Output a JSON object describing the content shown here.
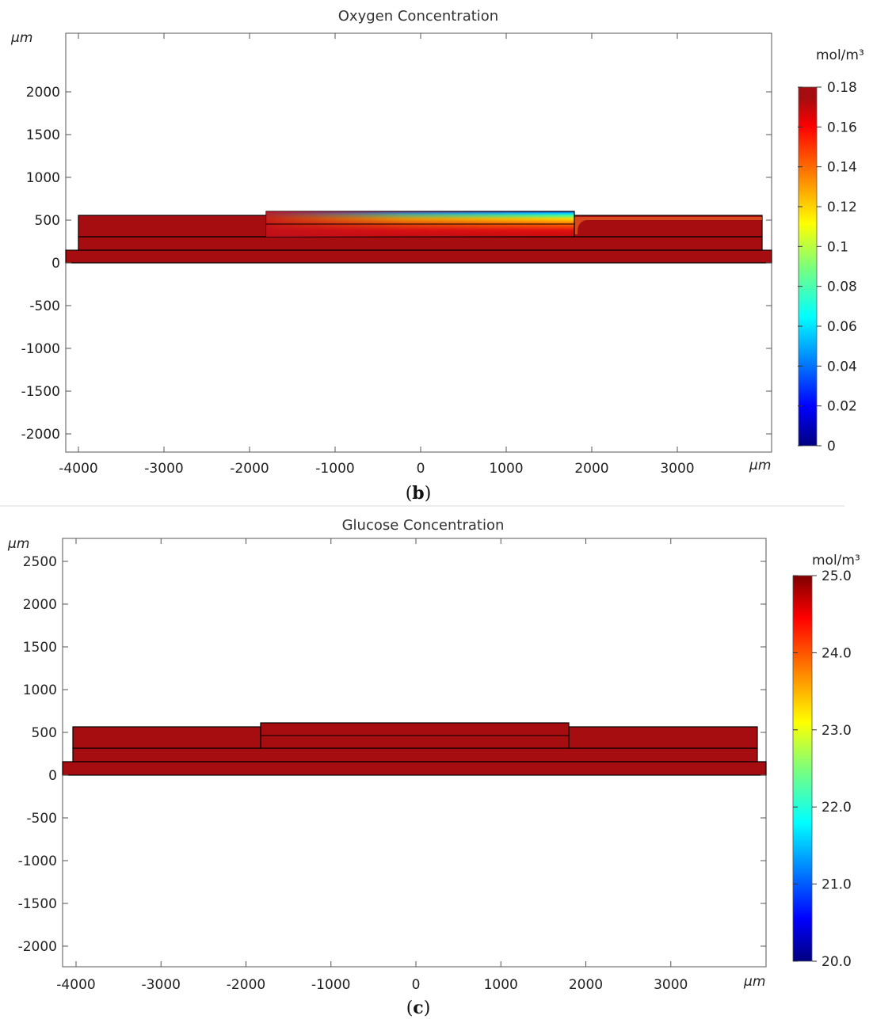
{
  "chart_data": [
    {
      "type": "heatmap",
      "title": "Oxygen Concentration",
      "caption_letter": "b",
      "x_unit_label": "μm",
      "y_unit_label": "μm",
      "xlim": [
        -4500,
        4100
      ],
      "ylim": [
        -2200,
        2600
      ],
      "x_ticks": [
        -4000,
        -3000,
        -2000,
        -1000,
        0,
        1000,
        2000,
        3000
      ],
      "y_ticks": [
        2000,
        1500,
        1000,
        500,
        0,
        -500,
        -1000,
        -1500,
        -2000
      ],
      "colorbar": {
        "label": "mol/m³",
        "range": [
          0,
          0.18
        ],
        "tick_labels": [
          "0.18",
          "0.16",
          "0.14",
          "0.12",
          "0.1",
          "0.08",
          "0.06",
          "0.04",
          "0.02",
          "0"
        ],
        "tick_values": [
          0.18,
          0.16,
          0.14,
          0.12,
          0.1,
          0.08,
          0.06,
          0.04,
          0.02,
          0
        ]
      },
      "regions": [
        {
          "x": [
            -4500,
            4100
          ],
          "y": [
            0,
            150
          ],
          "value": 0.18
        },
        {
          "x": [
            -4000,
            4000
          ],
          "y": [
            150,
            300
          ],
          "value": 0.175
        },
        {
          "x": [
            -4000,
            -1800
          ],
          "y": [
            300,
            560
          ],
          "value": 0.175
        },
        {
          "x": [
            1800,
            4000
          ],
          "y": [
            300,
            560
          ],
          "value": 0.172
        },
        {
          "x": [
            -1800,
            1800
          ],
          "y": [
            300,
            600
          ],
          "value_range": [
            0.0,
            0.17
          ],
          "note": "gradient"
        }
      ]
    },
    {
      "type": "heatmap",
      "title": "Glucose Concentration",
      "caption_letter": "c",
      "x_unit_label": "μm",
      "y_unit_label": "μm",
      "xlim": [
        -4500,
        4100
      ],
      "ylim": [
        -2250,
        2800
      ],
      "x_ticks": [
        -4000,
        -3000,
        -2000,
        -1000,
        0,
        1000,
        2000,
        3000
      ],
      "y_ticks": [
        2500,
        2000,
        1500,
        1000,
        500,
        0,
        -500,
        -1000,
        -1500,
        -2000
      ],
      "colorbar": {
        "label": "mol/m³",
        "range": [
          20.0,
          25.0
        ],
        "tick_labels": [
          "25.0",
          "24.0",
          "23.0",
          "22.0",
          "21.0",
          "20.0"
        ],
        "tick_values": [
          25,
          24,
          23,
          22,
          21,
          20
        ]
      },
      "regions": [
        {
          "x": [
            -4500,
            4100
          ],
          "y": [
            0,
            150
          ],
          "value": 25.0
        },
        {
          "x": [
            -4000,
            4000
          ],
          "y": [
            150,
            300
          ],
          "value": 25.0
        },
        {
          "x": [
            -4000,
            -1800
          ],
          "y": [
            300,
            560
          ],
          "value": 25.0
        },
        {
          "x": [
            1800,
            4000
          ],
          "y": [
            300,
            560
          ],
          "value": 25.0
        },
        {
          "x": [
            -1800,
            1800
          ],
          "y": [
            300,
            600
          ],
          "value": 25.0
        }
      ]
    }
  ],
  "colors": {
    "jet_dark_red": "#a50d10",
    "axis": "#555555",
    "divider": "#d8d8d8"
  }
}
